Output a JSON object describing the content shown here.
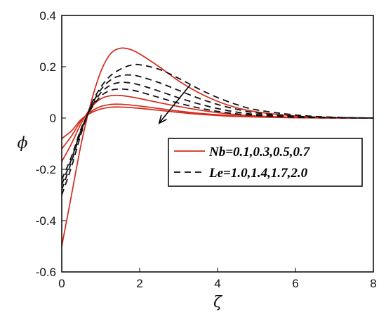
{
  "chart_data": {
    "type": "line",
    "xlabel": "ζ",
    "ylabel": "ϕ",
    "xlim": [
      0,
      8
    ],
    "ylim": [
      -0.6,
      0.4
    ],
    "xticks": [
      "0",
      "2",
      "4",
      "6",
      "8"
    ],
    "yticks": [
      "0.4",
      "0.2",
      "0",
      "-0.2",
      "-0.4",
      "-0.6"
    ],
    "grid": false,
    "legend_placement": "center-right",
    "legend": [
      {
        "label": "Nb=0.1,0.3,0.5,0.7",
        "style": "solid",
        "color": "#d42a1c"
      },
      {
        "label": "Le=1.0,1.4,1.7,2.0",
        "style": "dashed",
        "color": "#111111"
      }
    ],
    "arrow": {
      "from": [
        3.3,
        0.13
      ],
      "to": [
        2.5,
        -0.02
      ]
    },
    "series": [
      {
        "group": "Nb",
        "style": "solid",
        "color": "#d42a1c",
        "x": [
          0,
          0.25,
          0.5,
          0.75,
          1.0,
          1.25,
          1.5,
          1.75,
          2.0,
          2.5,
          3.0,
          3.5,
          4.0,
          4.5,
          5.0,
          6.0,
          7.0,
          8.0
        ],
        "y": [
          -0.5,
          -0.3,
          -0.1,
          0.06,
          0.18,
          0.25,
          0.272,
          0.268,
          0.25,
          0.2,
          0.145,
          0.1,
          0.065,
          0.04,
          0.024,
          0.008,
          0.002,
          0.0
        ]
      },
      {
        "group": "Nb",
        "style": "solid",
        "color": "#d42a1c",
        "x": [
          0,
          0.25,
          0.5,
          0.75,
          1.0,
          1.25,
          1.5,
          1.75,
          2.0,
          2.5,
          3.0,
          3.5,
          4.0,
          4.5,
          5.0,
          6.0,
          7.0,
          8.0
        ],
        "y": [
          -0.17,
          -0.1,
          -0.02,
          0.04,
          0.075,
          0.087,
          0.088,
          0.083,
          0.076,
          0.06,
          0.045,
          0.032,
          0.021,
          0.013,
          0.008,
          0.003,
          0.001,
          0.0
        ]
      },
      {
        "group": "Nb",
        "style": "solid",
        "color": "#d42a1c",
        "x": [
          0,
          0.25,
          0.5,
          0.75,
          1.0,
          1.25,
          1.5,
          1.75,
          2.0,
          2.5,
          3.0,
          3.5,
          4.0,
          4.5,
          5.0,
          6.0,
          7.0,
          8.0
        ],
        "y": [
          -0.12,
          -0.07,
          -0.01,
          0.025,
          0.045,
          0.053,
          0.054,
          0.051,
          0.047,
          0.037,
          0.027,
          0.019,
          0.013,
          0.008,
          0.005,
          0.002,
          0.0,
          0.0
        ]
      },
      {
        "group": "Nb",
        "style": "solid",
        "color": "#d42a1c",
        "x": [
          0,
          0.25,
          0.5,
          0.75,
          1.0,
          1.25,
          1.5,
          1.75,
          2.0,
          2.5,
          3.0,
          3.5,
          4.0,
          4.5,
          5.0,
          6.0,
          7.0,
          8.0
        ],
        "y": [
          -0.08,
          -0.05,
          -0.005,
          0.02,
          0.035,
          0.042,
          0.043,
          0.041,
          0.038,
          0.03,
          0.022,
          0.015,
          0.01,
          0.006,
          0.004,
          0.001,
          0.0,
          0.0
        ]
      },
      {
        "group": "Le",
        "style": "dashed",
        "color": "#111111",
        "x": [
          0,
          0.25,
          0.5,
          0.75,
          1.0,
          1.25,
          1.5,
          1.75,
          2.0,
          2.5,
          3.0,
          3.5,
          4.0,
          4.5,
          5.0,
          6.0,
          7.0,
          8.0
        ],
        "y": [
          -0.3,
          -0.19,
          -0.06,
          0.05,
          0.12,
          0.165,
          0.19,
          0.205,
          0.208,
          0.19,
          0.155,
          0.115,
          0.08,
          0.052,
          0.032,
          0.012,
          0.003,
          0.0
        ]
      },
      {
        "group": "Le",
        "style": "dashed",
        "color": "#111111",
        "x": [
          0,
          0.25,
          0.5,
          0.75,
          1.0,
          1.25,
          1.5,
          1.75,
          2.0,
          2.5,
          3.0,
          3.5,
          4.0,
          4.5,
          5.0,
          6.0,
          7.0,
          8.0
        ],
        "y": [
          -0.28,
          -0.17,
          -0.05,
          0.045,
          0.11,
          0.148,
          0.165,
          0.168,
          0.162,
          0.138,
          0.108,
          0.078,
          0.053,
          0.034,
          0.02,
          0.007,
          0.002,
          0.0
        ]
      },
      {
        "group": "Le",
        "style": "dashed",
        "color": "#111111",
        "x": [
          0,
          0.25,
          0.5,
          0.75,
          1.0,
          1.25,
          1.5,
          1.75,
          2.0,
          2.5,
          3.0,
          3.5,
          4.0,
          4.5,
          5.0,
          6.0,
          7.0,
          8.0
        ],
        "y": [
          -0.26,
          -0.16,
          -0.045,
          0.04,
          0.098,
          0.128,
          0.139,
          0.137,
          0.129,
          0.105,
          0.079,
          0.056,
          0.037,
          0.023,
          0.014,
          0.005,
          0.001,
          0.0
        ]
      },
      {
        "group": "Le",
        "style": "dashed",
        "color": "#111111",
        "x": [
          0,
          0.25,
          0.5,
          0.75,
          1.0,
          1.25,
          1.5,
          1.75,
          2.0,
          2.5,
          3.0,
          3.5,
          4.0,
          4.5,
          5.0,
          6.0,
          7.0,
          8.0
        ],
        "y": [
          -0.24,
          -0.15,
          -0.04,
          0.035,
          0.085,
          0.108,
          0.113,
          0.11,
          0.102,
          0.08,
          0.058,
          0.04,
          0.026,
          0.016,
          0.01,
          0.003,
          0.001,
          0.0
        ]
      }
    ]
  }
}
